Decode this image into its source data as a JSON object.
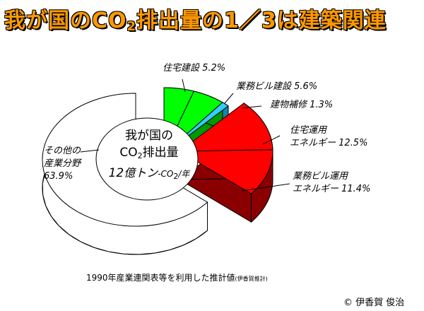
{
  "title": {
    "main": "我が国のCO",
    "sub": "2",
    "rest": "排出量の1／3は建築関連"
  },
  "center": {
    "line1": "我が国の",
    "line2_main": "CO",
    "line2_sub": "2",
    "line2_rest": "排出量",
    "value": "12",
    "unit1": "億トン",
    "unit2_main": "-CO",
    "unit2_sub": "2",
    "unit2_rest": "/年"
  },
  "chart_data": {
    "type": "pie",
    "title": "我が国のCO2排出量の1／3は建築関連",
    "total_label": "12億トン-CO2/年",
    "slices": [
      {
        "name": "住宅建設",
        "value": 5.2,
        "label": "住宅建設 5.2%",
        "color": "#00ff00"
      },
      {
        "name": "業務ビル建設",
        "value": 5.6,
        "label": "業務ビル建設 5.6%",
        "color": "#00ff00"
      },
      {
        "name": "建物補修",
        "value": 1.3,
        "label": "建物補修 1.3%",
        "color": "#33ccff"
      },
      {
        "name": "住宅運用エネルギー",
        "value": 12.5,
        "label_lines": [
          "住宅運用",
          "エネルギー 12.5%"
        ],
        "color": "#ff0000"
      },
      {
        "name": "業務ビル運用エネルギー",
        "value": 11.4,
        "label_lines": [
          "業務ビル運用",
          "エネルギー 11.4%"
        ],
        "color": "#ff0000"
      },
      {
        "name": "その他の産業分野",
        "value": 63.9,
        "label_lines": [
          "その他の",
          "産業分野",
          "63.9%"
        ],
        "color": "#ffffff"
      }
    ]
  },
  "footer": {
    "source": "1990年産業連関表等を利用した推計値",
    "source_note": "(伊香賀推計)",
    "copyright": "© 伊香賀 俊治"
  }
}
